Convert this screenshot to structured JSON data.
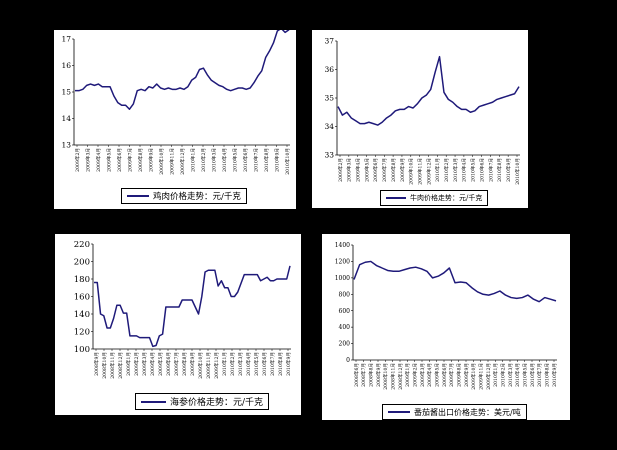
{
  "chart_data": [
    {
      "type": "line",
      "legend": "鸡肉价格走势：元/千克",
      "ylim": [
        13,
        17
      ],
      "y_ticks": [
        "13",
        "14",
        "15",
        "16",
        "17"
      ],
      "x_labels": [
        "2009年2月",
        "2009年3月",
        "2009年4月",
        "2009年5月",
        "2009年6月",
        "2009年7月",
        "2009年8月",
        "2009年9月",
        "2009年10月",
        "2009年11月",
        "2009年12月",
        "2010年1月",
        "2010年2月",
        "2010年3月",
        "2010年4月",
        "2010年5月",
        "2010年6月",
        "2010年7月",
        "2010年8月",
        "2010年9月",
        "2010年10月"
      ],
      "values": [
        15.05,
        15.05,
        15.1,
        15.25,
        15.3,
        15.25,
        15.3,
        15.2,
        15.2,
        15.2,
        14.85,
        14.6,
        14.5,
        14.5,
        14.35,
        14.55,
        15.05,
        15.1,
        15.05,
        15.2,
        15.15,
        15.3,
        15.15,
        15.1,
        15.15,
        15.1,
        15.1,
        15.15,
        15.1,
        15.2,
        15.45,
        15.55,
        15.85,
        15.9,
        15.65,
        15.45,
        15.35,
        15.25,
        15.2,
        15.1,
        15.05,
        15.1,
        15.15,
        15.15,
        15.1,
        15.15,
        15.35,
        15.6,
        15.8,
        16.3,
        16.55,
        16.85,
        17.3,
        17.4,
        17.25,
        17.35
      ],
      "color": "#1f1a7a"
    },
    {
      "type": "line",
      "legend": "牛肉价格走势：元/千克",
      "ylim": [
        33,
        37
      ],
      "y_ticks": [
        "33",
        "34",
        "35",
        "36",
        "37"
      ],
      "x_labels": [
        "2009年2月",
        "2009年3月",
        "2009年4月",
        "2009年5月",
        "2009年6月",
        "2009年7月",
        "2009年8月",
        "2009年9月",
        "2009年10月",
        "2009年11月",
        "2009年12月",
        "2010年1月",
        "2010年2月",
        "2010年3月",
        "2010年4月",
        "2010年5月",
        "2010年6月",
        "2010年7月",
        "2010年8月",
        "2010年9月",
        "2010年10月"
      ],
      "values": [
        34.7,
        34.4,
        34.5,
        34.3,
        34.2,
        34.1,
        34.1,
        34.15,
        34.1,
        34.05,
        34.15,
        34.3,
        34.4,
        34.55,
        34.6,
        34.6,
        34.7,
        34.65,
        34.8,
        35.0,
        35.1,
        35.3,
        35.9,
        36.45,
        35.2,
        34.95,
        34.85,
        34.7,
        34.6,
        34.6,
        34.5,
        34.55,
        34.7,
        34.75,
        34.8,
        34.85,
        34.95,
        35.0,
        35.05,
        35.1,
        35.15,
        35.4
      ],
      "color": "#1f1a7a"
    },
    {
      "type": "line",
      "legend": "海参价格走势：元/千克",
      "ylim": [
        100,
        220
      ],
      "y_ticks": [
        "100",
        "120",
        "140",
        "160",
        "180",
        "200",
        "220"
      ],
      "x_labels": [
        "2008年9月",
        "2008年10月",
        "2008年11月",
        "2008年12月",
        "2009年1月",
        "2009年2月",
        "2009年3月",
        "2009年4月",
        "2009年5月",
        "2009年6月",
        "2009年7月",
        "2009年8月",
        "2009年9月",
        "2009年10月",
        "2009年11月",
        "2009年12月",
        "2010年1月",
        "2010年2月",
        "2010年3月",
        "2010年4月",
        "2010年5月",
        "2010年6月",
        "2010年7月",
        "2010年8月",
        "2010年9月"
      ],
      "values": [
        176,
        176,
        140,
        138,
        124,
        124,
        135,
        150,
        150,
        141,
        141,
        115,
        115,
        115,
        113,
        113,
        113,
        113,
        103,
        104,
        115,
        117,
        148,
        148,
        148,
        148,
        148,
        156,
        156,
        156,
        156,
        148,
        140,
        160,
        188,
        190,
        190,
        190,
        172,
        178,
        170,
        170,
        160,
        160,
        165,
        175,
        185,
        185,
        185,
        185,
        185,
        178,
        180,
        182,
        178,
        178,
        180,
        180,
        180,
        180,
        195
      ],
      "color": "#1f1a7a"
    },
    {
      "type": "line",
      "legend": "番茄酱出口价格走势：美元/吨",
      "ylim": [
        0,
        1400
      ],
      "y_ticks": [
        "0",
        "200",
        "400",
        "600",
        "800",
        "1000",
        "1200",
        "1400"
      ],
      "x_labels": [
        "2008年6月",
        "2008年7月",
        "2008年8月",
        "2008年9月",
        "2008年10月",
        "2008年11月",
        "2008年12月",
        "2009年1月",
        "2009年2月",
        "2009年3月",
        "2009年4月",
        "2009年5月",
        "2009年6月",
        "2009年7月",
        "2009年8月",
        "2009年9月",
        "2009年10月",
        "2009年11月",
        "2009年12月",
        "2010年1月",
        "2010年2月",
        "2010年3月",
        "2010年4月",
        "2010年5月",
        "2010年6月",
        "2010年7月",
        "2010年8月",
        "2010年9月"
      ],
      "values": [
        980,
        1160,
        1190,
        1200,
        1150,
        1120,
        1090,
        1080,
        1080,
        1100,
        1120,
        1130,
        1110,
        1080,
        1000,
        1020,
        1060,
        1120,
        940,
        950,
        940,
        880,
        830,
        800,
        790,
        810,
        840,
        790,
        760,
        750,
        760,
        790,
        740,
        710,
        760,
        740,
        720
      ],
      "color": "#1f1a7a"
    }
  ]
}
